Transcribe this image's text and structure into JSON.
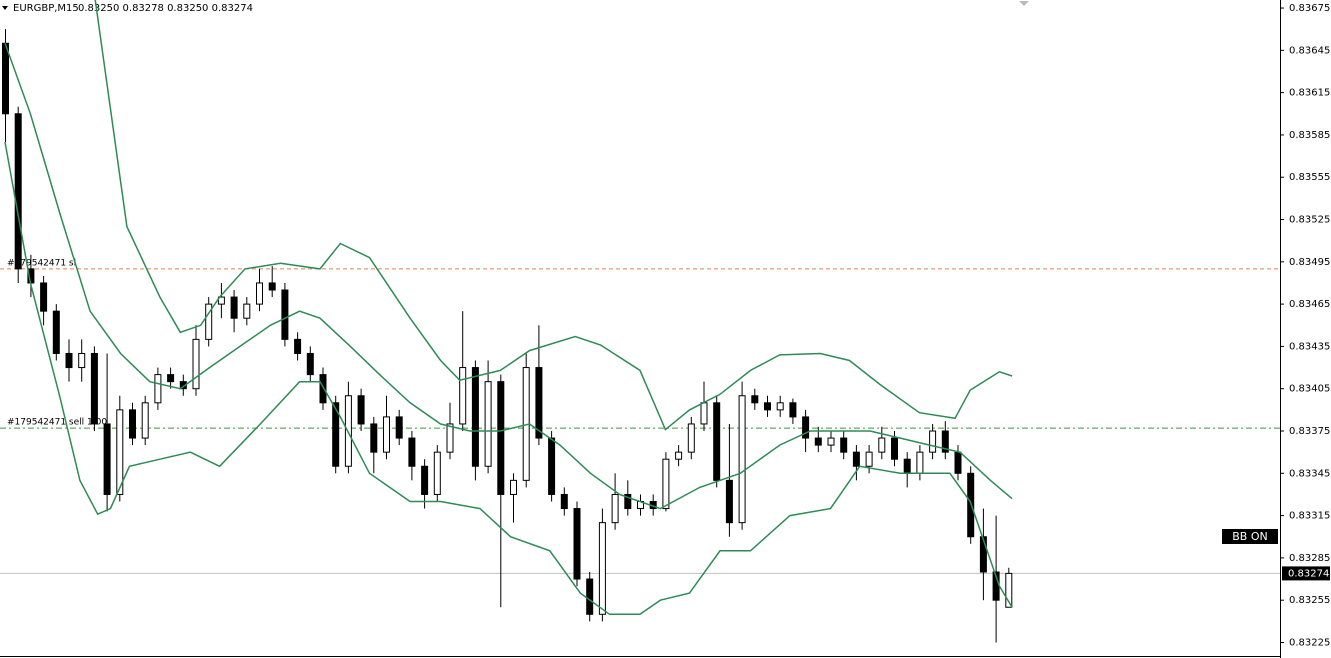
{
  "chart_data": {
    "type": "candlestick",
    "title": "EURGBP,M15",
    "quote": "0.83250 0.83278 0.83250 0.83274",
    "open": [
      0.8365,
      0.836,
      0.8349,
      0.8348,
      0.8346,
      0.8343,
      0.8342,
      0.8343,
      0.8338,
      0.8333,
      0.8339,
      0.8337,
      0.83395,
      0.83415,
      0.8341,
      0.83405,
      0.8344,
      0.83465,
      0.8347,
      0.83455,
      0.83465,
      0.8348,
      0.83475,
      0.8344,
      0.8343,
      0.83415,
      0.83395,
      0.8335,
      0.834,
      0.8338,
      0.8336,
      0.83385,
      0.8337,
      0.8335,
      0.8333,
      0.8336,
      0.8338,
      0.8342,
      0.8335,
      0.8341,
      0.8333,
      0.8334,
      0.8342,
      0.8337,
      0.8333,
      0.8332,
      0.8327,
      0.83245,
      0.8331,
      0.8333,
      0.8332,
      0.83325,
      0.8332,
      0.83355,
      0.8336,
      0.8338,
      0.83395,
      0.8334,
      0.8331,
      0.834,
      0.83395,
      0.8339,
      0.83395,
      0.83385,
      0.8337,
      0.83365,
      0.8337,
      0.8336,
      0.8335,
      0.8336,
      0.8337,
      0.83355,
      0.83345,
      0.8336,
      0.83375,
      0.8336,
      0.83345,
      0.833,
      0.83275,
      0.8325
    ],
    "high": [
      0.8366,
      0.83605,
      0.835,
      0.83485,
      0.83465,
      0.8344,
      0.8344,
      0.83435,
      0.8343,
      0.834,
      0.83395,
      0.834,
      0.8342,
      0.8342,
      0.83415,
      0.8345,
      0.8347,
      0.8348,
      0.83475,
      0.8347,
      0.8349,
      0.83492,
      0.8348,
      0.83445,
      0.83435,
      0.8342,
      0.834,
      0.8341,
      0.83405,
      0.83385,
      0.834,
      0.8339,
      0.83375,
      0.83355,
      0.83365,
      0.83395,
      0.8346,
      0.83425,
      0.83425,
      0.83415,
      0.83345,
      0.8343,
      0.8345,
      0.83375,
      0.83335,
      0.83325,
      0.83275,
      0.8332,
      0.83345,
      0.8334,
      0.8333,
      0.8333,
      0.8336,
      0.83365,
      0.83385,
      0.8341,
      0.834,
      0.8338,
      0.8341,
      0.83405,
      0.834,
      0.834,
      0.83398,
      0.8339,
      0.83378,
      0.83375,
      0.83375,
      0.83365,
      0.83365,
      0.83378,
      0.83375,
      0.8336,
      0.83365,
      0.8338,
      0.83382,
      0.83365,
      0.8335,
      0.8332,
      0.83315,
      0.83278
    ],
    "low": [
      0.8358,
      0.8348,
      0.8347,
      0.8345,
      0.83425,
      0.8341,
      0.8341,
      0.83375,
      0.83318,
      0.83325,
      0.83365,
      0.83365,
      0.8339,
      0.83405,
      0.834,
      0.834,
      0.83435,
      0.83455,
      0.83445,
      0.8345,
      0.8346,
      0.8347,
      0.83435,
      0.83425,
      0.8341,
      0.8339,
      0.83345,
      0.83345,
      0.83375,
      0.83345,
      0.83355,
      0.83365,
      0.8334,
      0.8332,
      0.83325,
      0.83355,
      0.83375,
      0.8334,
      0.83345,
      0.8325,
      0.8331,
      0.83335,
      0.83365,
      0.83325,
      0.83315,
      0.83265,
      0.8324,
      0.8324,
      0.83305,
      0.83315,
      0.83315,
      0.83315,
      0.83318,
      0.8335,
      0.83355,
      0.83375,
      0.83335,
      0.833,
      0.83305,
      0.8339,
      0.83385,
      0.83385,
      0.8338,
      0.8336,
      0.8336,
      0.8336,
      0.83355,
      0.8334,
      0.83345,
      0.83355,
      0.8335,
      0.83335,
      0.8334,
      0.83355,
      0.83355,
      0.8334,
      0.83295,
      0.83255,
      0.83225,
      0.8325
    ],
    "close": [
      0.836,
      0.8349,
      0.8348,
      0.8346,
      0.8343,
      0.8342,
      0.8343,
      0.8338,
      0.8333,
      0.8339,
      0.8337,
      0.83395,
      0.83415,
      0.8341,
      0.83405,
      0.8344,
      0.83465,
      0.8347,
      0.83455,
      0.83465,
      0.8348,
      0.83475,
      0.8344,
      0.8343,
      0.83415,
      0.83395,
      0.8335,
      0.834,
      0.8338,
      0.8336,
      0.83385,
      0.8337,
      0.8335,
      0.8333,
      0.8336,
      0.8338,
      0.8342,
      0.8335,
      0.8341,
      0.8333,
      0.8334,
      0.8342,
      0.8337,
      0.8333,
      0.8332,
      0.8327,
      0.83245,
      0.8331,
      0.8333,
      0.8332,
      0.83325,
      0.8332,
      0.83355,
      0.8336,
      0.8338,
      0.83395,
      0.8334,
      0.8331,
      0.834,
      0.83395,
      0.8339,
      0.83395,
      0.83385,
      0.8337,
      0.83365,
      0.8337,
      0.8336,
      0.8335,
      0.8336,
      0.8337,
      0.83355,
      0.83345,
      0.8336,
      0.83375,
      0.8336,
      0.83345,
      0.833,
      0.83275,
      0.83255,
      0.83274
    ],
    "bands": [
      {
        "color": "#2e8b57",
        "x": [
          7.1,
          9.6,
          12.2,
          13.8,
          15.4,
          16.9,
          18.9,
          21.7,
          24.8,
          26.4,
          28.7,
          31.9,
          34.3,
          35.8,
          39,
          41.3,
          44.9,
          46.9,
          50,
          52,
          53.9,
          56.3,
          58.7,
          61,
          64.2,
          66.5,
          68.9,
          72,
          74.8,
          76,
          78.3,
          79.3
        ],
        "values": [
          0.83681,
          0.8352,
          0.8347,
          0.83445,
          0.8345,
          0.8347,
          0.8349,
          0.83494,
          0.8349,
          0.83508,
          0.83498,
          0.83455,
          0.83425,
          0.83411,
          0.83418,
          0.83432,
          0.83442,
          0.83436,
          0.83418,
          0.83376,
          0.8339,
          0.83401,
          0.83418,
          0.83429,
          0.8343,
          0.83425,
          0.83408,
          0.83388,
          0.83384,
          0.83404,
          0.83417,
          0.83414
        ]
      },
      {
        "color": "#2e8b57",
        "x": [
          0,
          2,
          4.3,
          6.7,
          9.1,
          11.4,
          13.8,
          16.1,
          18.5,
          20.9,
          23.2,
          24.8,
          27.2,
          29.5,
          31.9,
          34.3,
          36.6,
          39,
          41.3,
          43.7,
          46.1,
          48.4,
          51.6,
          54.7,
          57.9,
          61,
          63.4,
          65.7,
          68.1,
          70.5,
          72.8,
          75.2,
          77.6,
          79.3
        ],
        "values": [
          0.8365,
          0.836,
          0.8353,
          0.8346,
          0.8343,
          0.8341,
          0.83405,
          0.8342,
          0.83435,
          0.8345,
          0.8346,
          0.83455,
          0.83435,
          0.83415,
          0.83395,
          0.8338,
          0.83375,
          0.83375,
          0.8338,
          0.83365,
          0.83345,
          0.8333,
          0.8332,
          0.83335,
          0.83345,
          0.83365,
          0.83375,
          0.83375,
          0.83375,
          0.8337,
          0.83365,
          0.8336,
          0.8334,
          0.83327
        ]
      },
      {
        "color": "#2e8b57",
        "x": [
          0,
          2,
          4.3,
          5.9,
          7.3,
          8.3,
          9.8,
          12.2,
          14.6,
          16.9,
          20.1,
          23.2,
          24.8,
          26.4,
          28.7,
          31.9,
          34.3,
          37.4,
          39.8,
          42.9,
          45.3,
          47.6,
          50,
          51.6,
          53.9,
          56.3,
          58.7,
          61.8,
          65,
          67.3,
          70.5,
          74.4,
          76,
          78.3,
          79.3
        ],
        "values": [
          0.8358,
          0.8348,
          0.834,
          0.8334,
          0.83316,
          0.8332,
          0.8335,
          0.83355,
          0.8336,
          0.8335,
          0.8338,
          0.8341,
          0.8341,
          0.83385,
          0.83345,
          0.83325,
          0.83325,
          0.8332,
          0.833,
          0.8329,
          0.8326,
          0.83245,
          0.83245,
          0.83255,
          0.8326,
          0.8329,
          0.8329,
          0.83315,
          0.8332,
          0.8335,
          0.83345,
          0.83345,
          0.83325,
          0.83265,
          0.8325
        ]
      }
    ],
    "levels": [
      {
        "label": "#179542471 sl",
        "value": 0.8349,
        "color": "#e8804a",
        "dash": "4 3"
      },
      {
        "label": "#179542471 sell 1.00",
        "value": 0.83377,
        "color": "#3a9a3a",
        "dash": "6 3 2 3"
      }
    ],
    "bid": 0.83274,
    "badge": "BB ON",
    "ylim": [
      0.83214,
      0.836807
    ],
    "yticks": [
      0.83675,
      0.83645,
      0.83615,
      0.83585,
      0.83555,
      0.83525,
      0.83495,
      0.83465,
      0.83435,
      0.83405,
      0.83375,
      0.83345,
      0.83315,
      0.83285,
      0.83255,
      0.83225
    ]
  }
}
